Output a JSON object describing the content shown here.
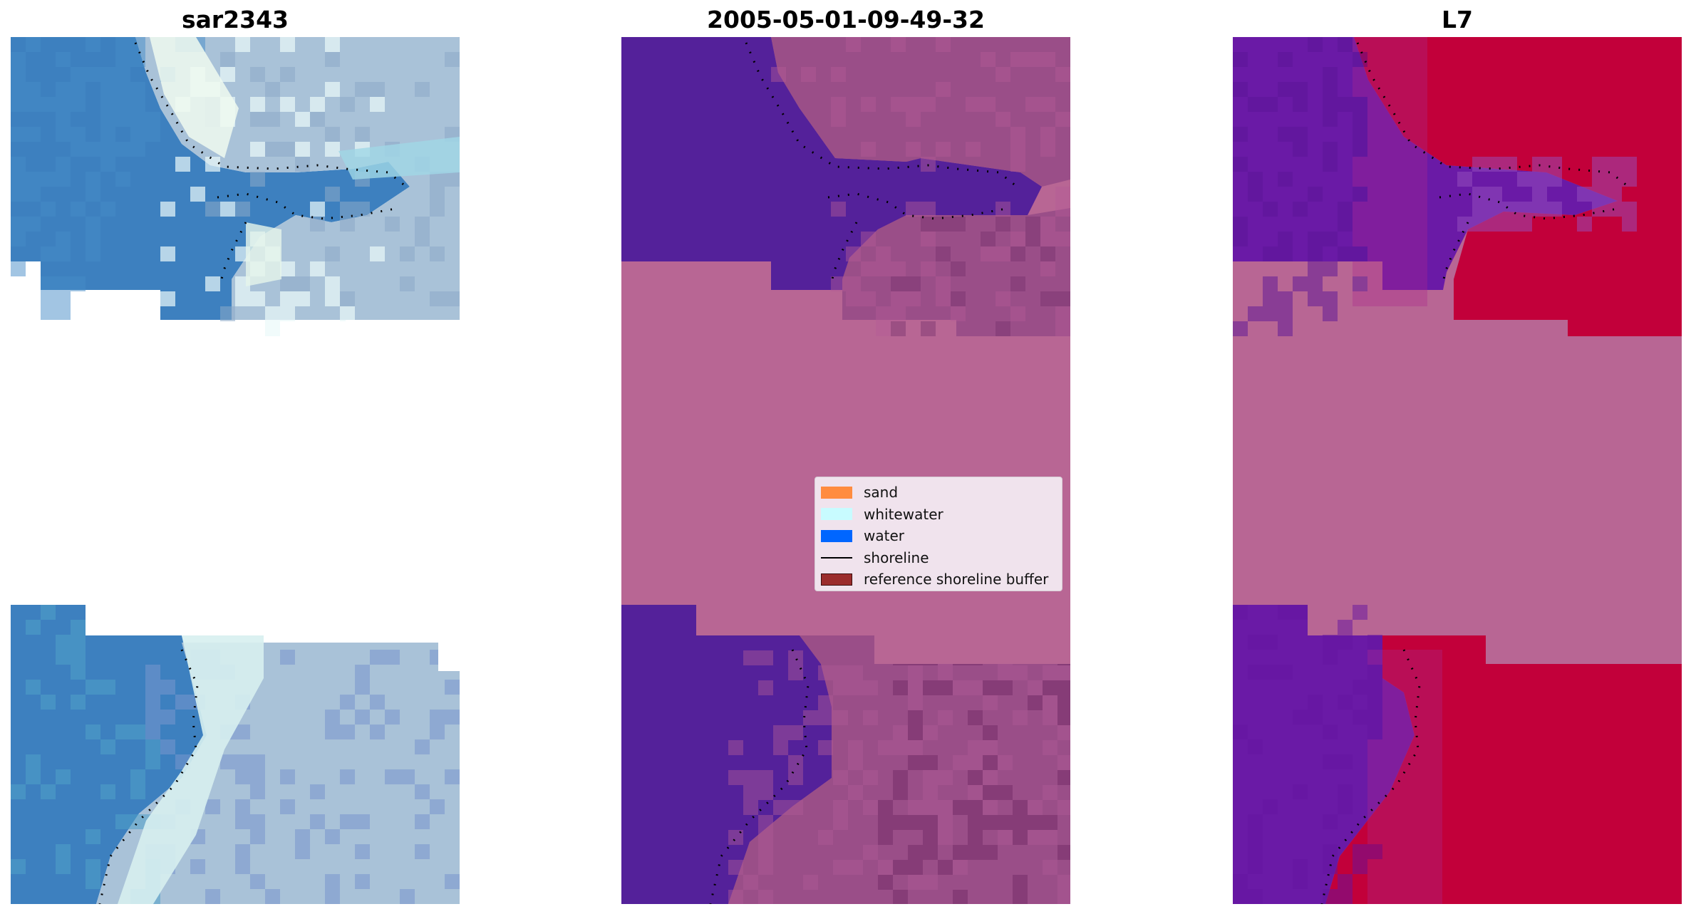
{
  "figure": {
    "panels": [
      {
        "id": "rgb",
        "title": "sar2343"
      },
      {
        "id": "classification",
        "title": "2005-05-01-09-49-32"
      },
      {
        "id": "mndwi",
        "title": "L7"
      }
    ],
    "legend": {
      "items": [
        {
          "label": "sand",
          "kind": "patch",
          "color": "#ff8c3f"
        },
        {
          "label": "whitewater",
          "kind": "patch",
          "color": "#c8fbff"
        },
        {
          "label": "water",
          "kind": "patch",
          "color": "#0066ff"
        },
        {
          "label": "shoreline",
          "kind": "line",
          "color": "#000000"
        },
        {
          "label": "reference shoreline buffer",
          "kind": "patch",
          "color": "#9b2c2c"
        }
      ]
    },
    "colors": {
      "nodata": "#b86694",
      "rgb_water": "#3d80bf",
      "rgb_whitewater": "#e8f4f4",
      "rgb_land": "#a9c2d8",
      "class_water": "#54219a",
      "class_land": "#9a4e88",
      "index_water": "#6a1aa6",
      "index_land": "#c2003a",
      "shoreline": "#000000"
    }
  }
}
